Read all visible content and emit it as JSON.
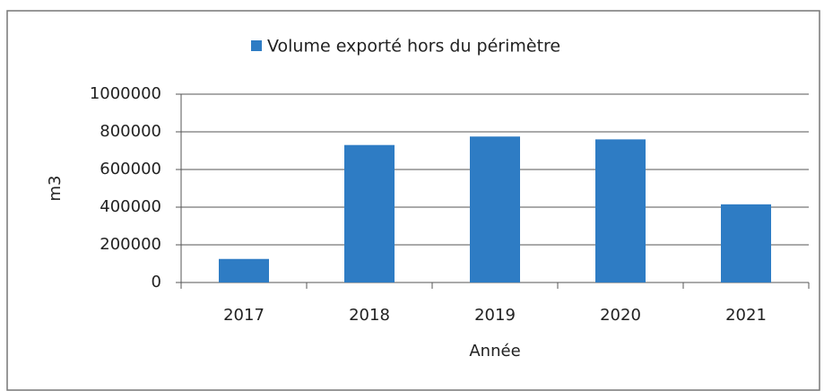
{
  "chart_data": {
    "type": "bar",
    "categories": [
      "2017",
      "2018",
      "2019",
      "2020",
      "2021"
    ],
    "series": [
      {
        "name": "Volume exporté hors du périmètre",
        "color": "#2e7cc4",
        "values": [
          125000,
          730000,
          775000,
          760000,
          415000
        ]
      }
    ],
    "xlabel": "Année",
    "ylabel": "m3",
    "ylim": [
      0,
      1000000
    ],
    "yticks": [
      0,
      200000,
      400000,
      600000,
      800000,
      1000000
    ],
    "grid": true,
    "legend": "top"
  }
}
